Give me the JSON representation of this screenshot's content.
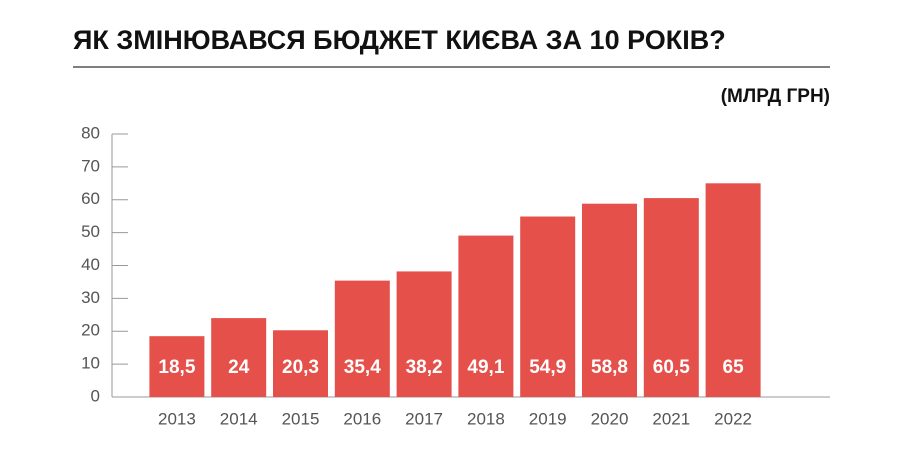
{
  "chart_data": {
    "type": "bar",
    "title": "ЯК ЗМІНЮВАВСЯ БЮДЖЕТ КИЄВА ЗА 10 РОКІВ?",
    "subtitle": "(МЛРД ГРН)",
    "categories": [
      "2013",
      "2014",
      "2015",
      "2016",
      "2017",
      "2018",
      "2019",
      "2020",
      "2021",
      "2022"
    ],
    "values": [
      18.5,
      24,
      20.3,
      35.4,
      38.2,
      49.1,
      54.9,
      58.8,
      60.5,
      65
    ],
    "value_labels": [
      "18,5",
      "24",
      "20,3",
      "35,4",
      "38,2",
      "49,1",
      "54,9",
      "58,8",
      "60,5",
      "65"
    ],
    "color": "#e5504a",
    "ylim": [
      0,
      80
    ],
    "yticks": [
      0,
      10,
      20,
      30,
      40,
      50,
      60,
      70,
      80
    ]
  }
}
